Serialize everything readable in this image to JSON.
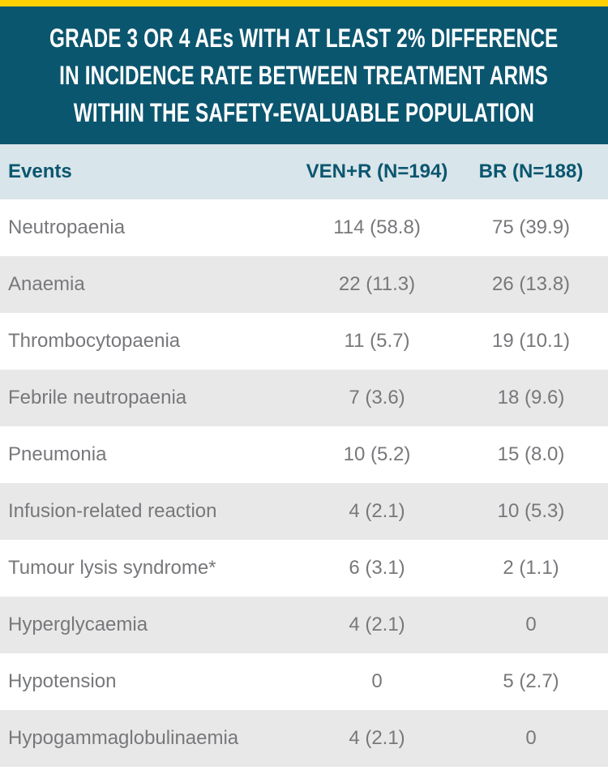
{
  "colors": {
    "accent_yellow": "#FFD100",
    "brand_teal": "#0B566F",
    "header_row_bg": "#D8E5EA",
    "alt_row_bg": "#E9E8E8",
    "body_text_gray": "#77787B"
  },
  "title": {
    "lines": [
      "GRADE 3 OR 4 AEs WITH AT LEAST 2% DIFFERENCE",
      "IN INCIDENCE RATE BETWEEN TREATMENT ARMS",
      "WITHIN THE SAFETY-EVALUABLE POPULATION"
    ]
  },
  "table": {
    "columns": [
      "Events",
      "VEN+R (N=194)",
      "BR (N=188)"
    ],
    "rows": [
      {
        "event": "Neutropaenia",
        "venr": "114 (58.8)",
        "br": "75 (39.9)"
      },
      {
        "event": "Anaemia",
        "venr": "22 (11.3)",
        "br": "26 (13.8)"
      },
      {
        "event": "Thrombocytopaenia",
        "venr": "11 (5.7)",
        "br": "19 (10.1)"
      },
      {
        "event": "Febrile neutropaenia",
        "venr": "7 (3.6)",
        "br": "18 (9.6)"
      },
      {
        "event": "Pneumonia",
        "venr": "10 (5.2)",
        "br": "15 (8.0)"
      },
      {
        "event": "Infusion-related reaction",
        "venr": "4 (2.1)",
        "br": "10 (5.3)"
      },
      {
        "event": "Tumour lysis syndrome*",
        "venr": "6 (3.1)",
        "br": "2 (1.1)"
      },
      {
        "event": "Hyperglycaemia",
        "venr": "4 (2.1)",
        "br": "0"
      },
      {
        "event": "Hypotension",
        "venr": "0",
        "br": "5 (2.7)"
      },
      {
        "event": "Hypogammaglobulinaemia",
        "venr": "4 (2.1)",
        "br": "0"
      }
    ]
  },
  "chart_data": {
    "type": "table",
    "title": "GRADE 3 OR 4 AEs WITH AT LEAST 2% DIFFERENCE IN INCIDENCE RATE BETWEEN TREATMENT ARMS WITHIN THE SAFETY-EVALUABLE POPULATION",
    "columns": [
      "Events",
      "VEN+R (N=194)",
      "BR (N=188)"
    ],
    "rows": [
      [
        "Neutropaenia",
        "114 (58.8)",
        "75 (39.9)"
      ],
      [
        "Anaemia",
        "22 (11.3)",
        "26 (13.8)"
      ],
      [
        "Thrombocytopaenia",
        "11 (5.7)",
        "19 (10.1)"
      ],
      [
        "Febrile neutropaenia",
        "7 (3.6)",
        "18 (9.6)"
      ],
      [
        "Pneumonia",
        "10 (5.2)",
        "15 (8.0)"
      ],
      [
        "Infusion-related reaction",
        "4 (2.1)",
        "10 (5.3)"
      ],
      [
        "Tumour lysis syndrome*",
        "6 (3.1)",
        "2 (1.1)"
      ],
      [
        "Hyperglycaemia",
        "4 (2.1)",
        "0"
      ],
      [
        "Hypotension",
        "0",
        "5 (2.7)"
      ],
      [
        "Hypogammaglobulinaemia",
        "4 (2.1)",
        "0"
      ]
    ]
  }
}
